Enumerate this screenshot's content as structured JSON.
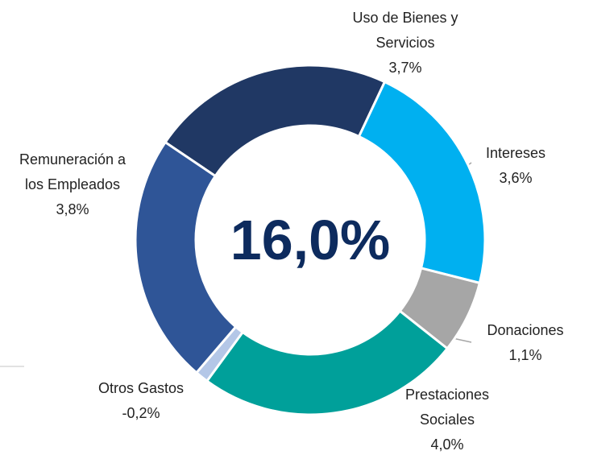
{
  "chart_data": {
    "type": "donut",
    "categories": [
      "Uso de Bienes y Servicios",
      "Intereses",
      "Donaciones",
      "Prestaciones Sociales",
      "Otros Gastos",
      "Remuneración a los Empleados"
    ],
    "values": [
      3.7,
      3.6,
      1.1,
      4.0,
      -0.2,
      3.8
    ],
    "value_labels": [
      "3,7%",
      "3,6%",
      "1,1%",
      "4,0%",
      "-0,2%",
      "3,8%"
    ],
    "colors": [
      "#203864",
      "#00b0f0",
      "#a6a6a6",
      "#00a09a",
      "#b4c7e7",
      "#2f5597"
    ],
    "center_label": "16,0%"
  }
}
